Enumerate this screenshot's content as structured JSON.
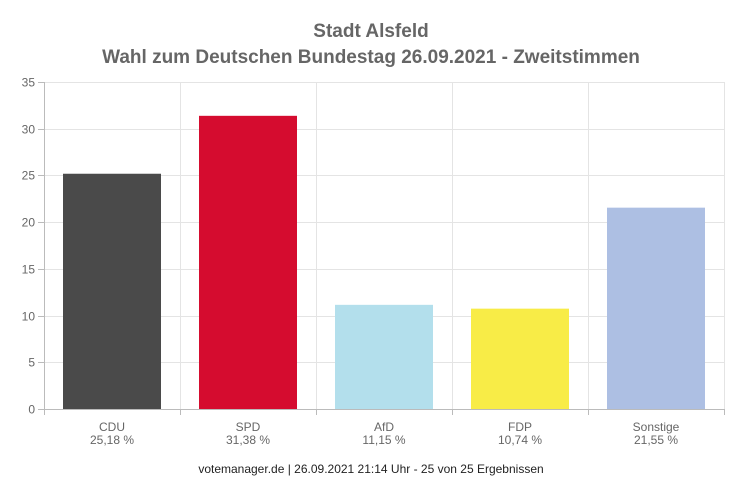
{
  "chart_data": {
    "type": "bar",
    "title": "Stadt Alsfeld",
    "subtitle": "Wahl zum Deutschen Bundestag 26.09.2021  - Zweitstimmen",
    "categories": [
      "CDU",
      "SPD",
      "AfD",
      "FDP",
      "Sonstige"
    ],
    "value_labels": [
      "25,18 %",
      "31,38 %",
      "11,15 %",
      "10,74 %",
      "21,55 %"
    ],
    "values": [
      25.18,
      31.38,
      11.15,
      10.74,
      21.55
    ],
    "colors": [
      "#4a4a4a",
      "#d50c2f",
      "#b3dfec",
      "#f8ec47",
      "#adbfe3"
    ],
    "ylim": [
      0,
      35
    ],
    "yticks": [
      0,
      5,
      10,
      15,
      20,
      25,
      30,
      35
    ],
    "grid": true,
    "legend": "none"
  },
  "footer": "votemanager.de | 26.09.2021 21:14 Uhr - 25 von 25 Ergebnissen"
}
